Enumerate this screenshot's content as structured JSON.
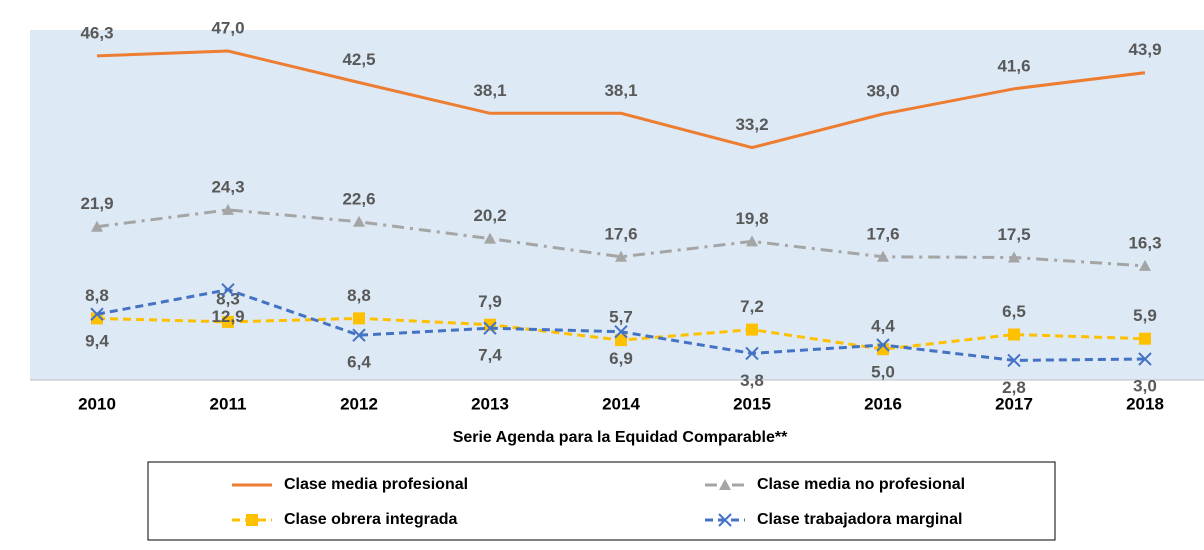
{
  "chart_data": {
    "type": "line",
    "x_label": "Serie Agenda para la Equidad Comparable**",
    "categories": [
      "2010",
      "2011",
      "2012",
      "2013",
      "2014",
      "2015",
      "2016",
      "2017",
      "2018"
    ],
    "ylim": [
      0,
      50
    ],
    "series": [
      {
        "name": "Clase media profesional",
        "color": "#ed7d31",
        "style": "solid",
        "marker": "none",
        "values": [
          46.3,
          47.0,
          42.5,
          38.1,
          38.1,
          33.2,
          38.0,
          41.6,
          43.9
        ],
        "value_labels": [
          "46,3",
          "47,0",
          "42,5",
          "38,1",
          "38,1",
          "33,2",
          "38,0",
          "41,6",
          "43,9"
        ]
      },
      {
        "name": "Clase media no profesional",
        "color": "#a5a5a5",
        "style": "dashdot",
        "marker": "triangle",
        "values": [
          21.9,
          24.3,
          22.6,
          20.2,
          17.6,
          19.8,
          17.6,
          17.5,
          16.3
        ],
        "value_labels": [
          "21,9",
          "24,3",
          "22,6",
          "20,2",
          "17,6",
          "19,8",
          "17,6",
          "17,5",
          "16,3"
        ]
      },
      {
        "name": "Clase obrera integrada",
        "color": "#ffc000",
        "style": "dashed",
        "marker": "square",
        "values": [
          8.8,
          8.3,
          8.8,
          7.9,
          5.7,
          7.2,
          4.4,
          6.5,
          5.9
        ],
        "value_labels": [
          "8,8",
          "8,3",
          "8,8",
          "7,9",
          "5,7",
          "7,2",
          "4,4",
          "6,5",
          "5,9"
        ]
      },
      {
        "name": "Clase trabajadora marginal",
        "color": "#4472c4",
        "style": "dashed",
        "marker": "x",
        "values": [
          9.4,
          12.9,
          6.4,
          7.4,
          6.9,
          3.8,
          5.0,
          2.8,
          3.0
        ],
        "value_labels": [
          "9,4",
          "12,9",
          "6,4",
          "7,4",
          "6,9",
          "3,8",
          "5,0",
          "2,8",
          "3,0"
        ]
      }
    ]
  }
}
